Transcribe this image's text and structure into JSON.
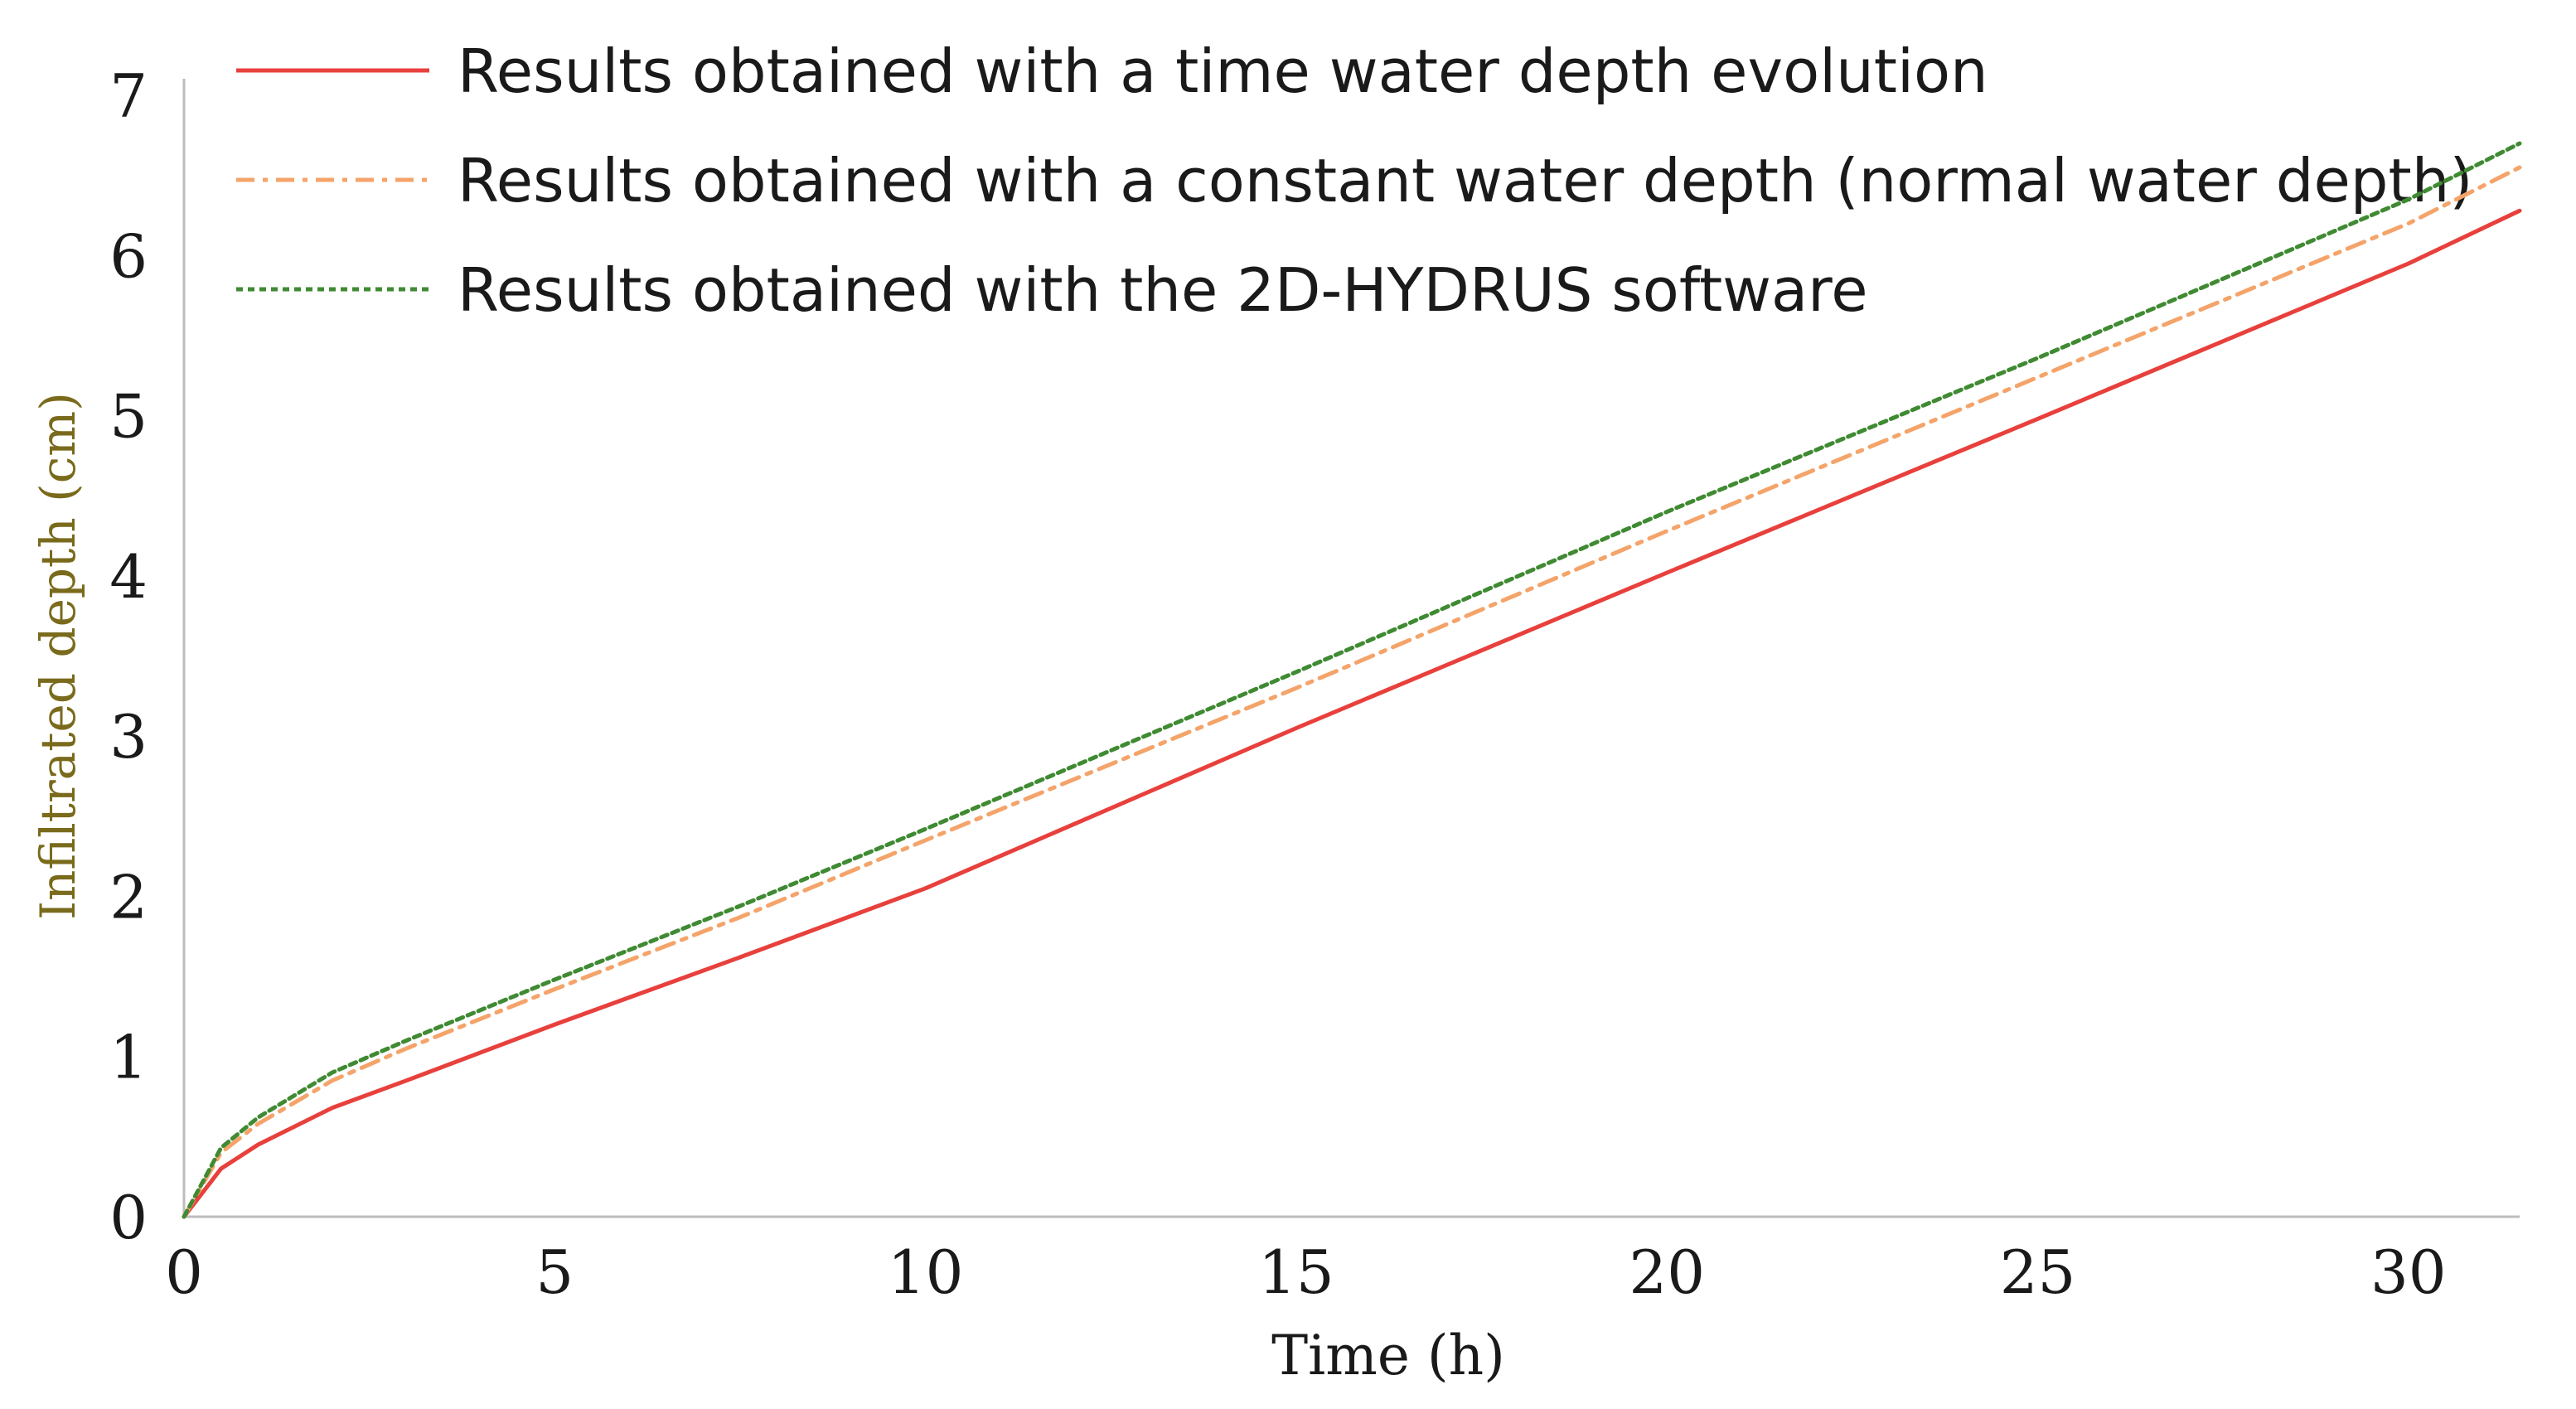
{
  "chart_data": {
    "type": "line",
    "title": "",
    "xlabel": "Time (h)",
    "ylabel": "Infiltrated depth (cm)",
    "xlim": [
      0,
      31.5
    ],
    "ylim": [
      0,
      7
    ],
    "x_ticks": [
      "0",
      "5",
      "10",
      "15",
      "20",
      "25",
      "30"
    ],
    "y_ticks": [
      "0",
      "1",
      "2",
      "3",
      "4",
      "5",
      "6",
      "7"
    ],
    "grid": false,
    "legend_position": "top",
    "series": [
      {
        "name": "Results obtained with a time water depth evolution",
        "color": "#e8403c",
        "style": "solid",
        "x": [
          0,
          0.5,
          1,
          2,
          3,
          5,
          7.5,
          10,
          15,
          20,
          25,
          30,
          31.5
        ],
        "y": [
          0,
          0.3,
          0.45,
          0.68,
          0.85,
          1.2,
          1.62,
          2.05,
          3.05,
          4.02,
          4.98,
          5.95,
          6.28
        ]
      },
      {
        "name": "Results obtained with a constant water depth (normal water depth)",
        "color": "#f4a46a",
        "style": "dashdot",
        "x": [
          0,
          0.5,
          1,
          2,
          3,
          5,
          7.5,
          10,
          15,
          20,
          25,
          30,
          31.5
        ],
        "y": [
          0,
          0.4,
          0.58,
          0.85,
          1.05,
          1.42,
          1.87,
          2.35,
          3.3,
          4.28,
          5.24,
          6.2,
          6.55
        ]
      },
      {
        "name": "Results obtained with the 2D-HYDRUS software",
        "color": "#3f8a32",
        "style": "dotted",
        "x": [
          0,
          0.5,
          1,
          2,
          3,
          5,
          7.5,
          10,
          15,
          20,
          25,
          30,
          31.5
        ],
        "y": [
          0,
          0.43,
          0.62,
          0.9,
          1.1,
          1.48,
          1.94,
          2.42,
          3.4,
          4.4,
          5.36,
          6.35,
          6.7
        ]
      }
    ]
  }
}
